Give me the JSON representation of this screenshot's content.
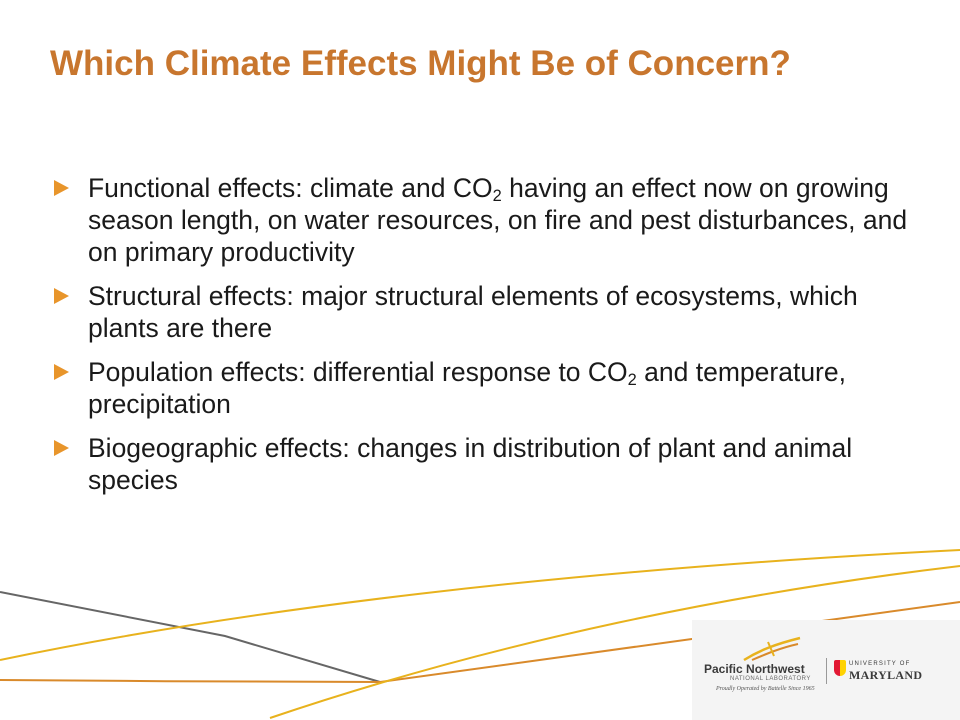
{
  "slide": {
    "title": "Which Climate Effects Might Be of Concern?",
    "bullets": [
      {
        "before": "Functional effects: climate and CO",
        "sub": "2",
        "after": " having an effect now on growing season length, on water resources, on fire and pest disturbances, and on primary productivity"
      },
      {
        "before": "Structural effects: major structural elements of ecosystems, which plants are there",
        "sub": "",
        "after": ""
      },
      {
        "before": "Population effects: differential response to CO",
        "sub": "2",
        "after": " and temperature, precipitation"
      },
      {
        "before": "Biogeographic effects: changes in distribution of plant and animal species",
        "sub": "",
        "after": ""
      }
    ]
  },
  "logos": {
    "pnnl_name": "Pacific Northwest",
    "pnnl_sub": "NATIONAL LABORATORY",
    "pnnl_tagline": "Proudly Operated by Battelle Since 1965",
    "umd_university": "UNIVERSITY OF",
    "umd_name": "MARYLAND"
  },
  "colors": {
    "title": "#c8762e",
    "bullet_arrow": "#e8952b",
    "line_gold": "#e8b21d",
    "line_orange": "#d98a2b",
    "line_gray": "#666666"
  },
  "icons": {
    "bullet": "triangle-right-icon",
    "pnnl_logo": "pnnl-swoosh-icon",
    "umd_logo": "umd-shield-icon"
  }
}
